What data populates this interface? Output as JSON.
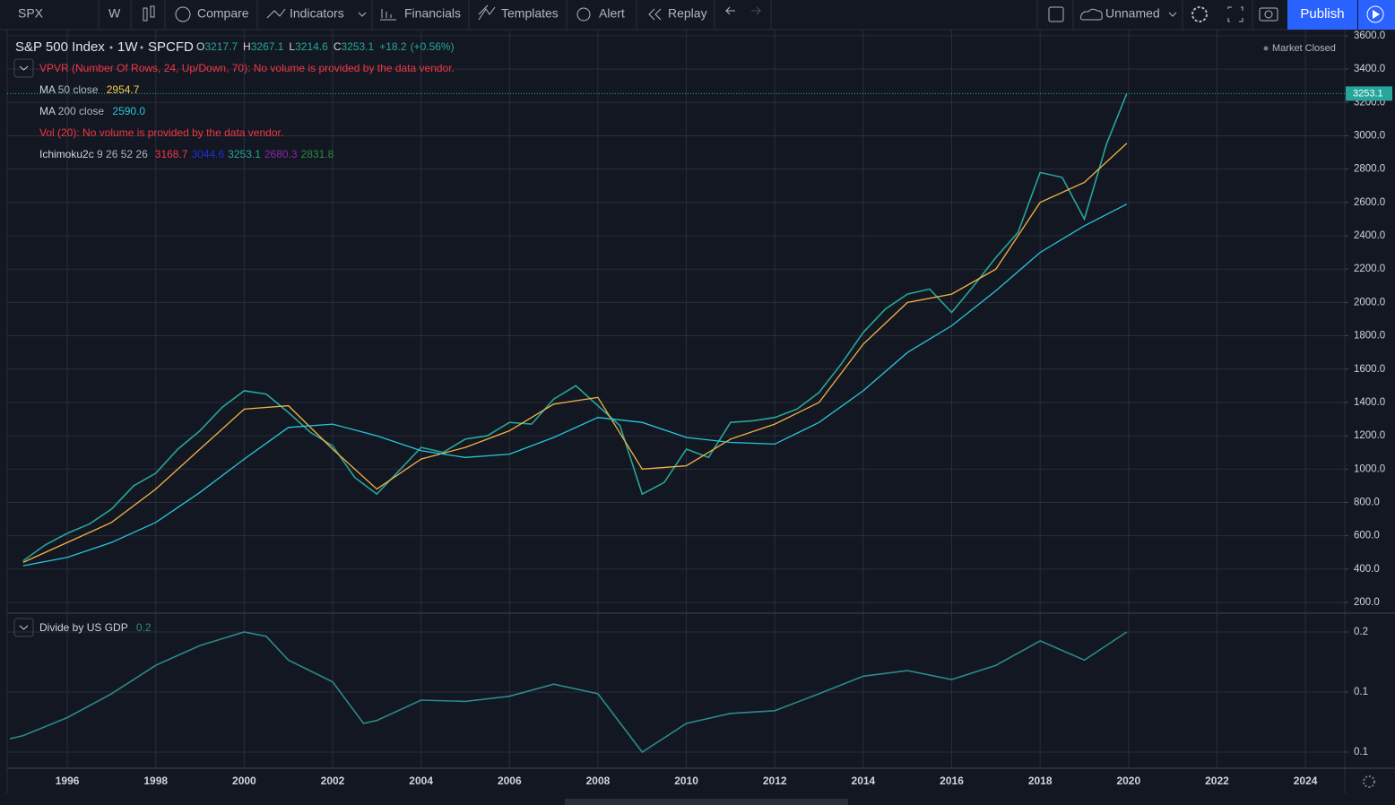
{
  "toolbar": {
    "symbol": "SPX",
    "interval": "W",
    "compare": "Compare",
    "indicators": "Indicators",
    "financials": "Financials",
    "templates": "Templates",
    "alert": "Alert",
    "replay": "Replay",
    "layout": "Unnamed",
    "publish": "Publish"
  },
  "header": {
    "symbol": "S&P 500 Index",
    "interval": "1W",
    "source": "SPCFD",
    "ohlc": [
      {
        "label": "O",
        "value": 3217.7
      },
      {
        "label": "H",
        "value": 3267.1
      },
      {
        "label": "L",
        "value": 3214.6
      },
      {
        "label": "C",
        "value": 3253.1
      }
    ],
    "change": "+18.2",
    "change_pct": "(+0.56%)",
    "status": "Market Closed"
  },
  "indicators": {
    "vpvr": "VPVR (Number Of Rows, 24, Up/Down, 70): No volume is provided by the data vendor.",
    "ma50": {
      "name": "MA",
      "params": "50 close",
      "value": 2954.7
    },
    "ma200": {
      "name": "MA",
      "params": "200 close",
      "value": "2590.0"
    },
    "vol": "Vol (20): No volume is provided by the data vendor.",
    "ichimoku": {
      "name": "Ichimoku2c",
      "params": "9 26 52 26",
      "values": [
        3168.7,
        3044.6,
        3253.1,
        2680.3,
        2831.8
      ],
      "colors": [
        "#f23645",
        "#1a2fd8",
        "#26a69a",
        "#8e24aa",
        "#2e8b3a"
      ]
    },
    "gdp": {
      "name": "Divide by US GDP",
      "value": 0.2
    }
  },
  "chart_data": [
    {
      "type": "line",
      "xlim": [
        1994.64,
        2024.89
      ],
      "xticks": [
        1996,
        1998,
        2000,
        2002,
        2004,
        2006,
        2008,
        2010,
        2012,
        2014,
        2016,
        2018,
        2020,
        2022,
        2024
      ],
      "ylim": [
        141,
        3621
      ],
      "yticks": [
        {
          "value": 200,
          "label": "200.0"
        },
        {
          "value": 400,
          "label": "400.0"
        },
        {
          "value": 600,
          "label": "600.0"
        },
        {
          "value": 800,
          "label": "800.0"
        },
        {
          "value": 1000,
          "label": "1000.0"
        },
        {
          "value": 1200,
          "label": "1200.0"
        },
        {
          "value": 1400,
          "label": "1400.0"
        },
        {
          "value": 1600,
          "label": "1600.0"
        },
        {
          "value": 1800,
          "label": "1800.0"
        },
        {
          "value": 2000,
          "label": "2000.0"
        },
        {
          "value": 2200,
          "label": "2200.0"
        },
        {
          "value": 2400,
          "label": "2400.0"
        },
        {
          "value": 2600,
          "label": "2600.0"
        },
        {
          "value": 2800,
          "label": "2800.0"
        },
        {
          "value": 3000,
          "label": "3000.0"
        },
        {
          "value": 3200,
          "label": "3200.0"
        },
        {
          "value": 3400,
          "label": "3400.0"
        },
        {
          "value": 3600,
          "label": "3600.0"
        }
      ],
      "grid": true,
      "series": [
        {
          "color": "#26a69a",
          "x": [
            1995,
            1995.5,
            1996,
            1996.5,
            1997,
            1997.5,
            1998,
            1998.5,
            1999,
            1999.5,
            2000,
            2000.5,
            2001,
            2001.5,
            2002,
            2002.5,
            2003,
            2003.5,
            2004,
            2004.5,
            2005,
            2005.5,
            2006,
            2006.5,
            2007,
            2007.5,
            2008,
            2008.5,
            2009,
            2009.5,
            2010,
            2010.5,
            2011,
            2011.5,
            2012,
            2012.5,
            2013,
            2013.5,
            2014,
            2014.5,
            2015,
            2015.5,
            2016,
            2016.5,
            2017,
            2017.5,
            2018,
            2018.5,
            2019,
            2019.5,
            2019.96
          ],
          "values": [
            450,
            545,
            615,
            670,
            760,
            900,
            975,
            1120,
            1230,
            1370,
            1470,
            1450,
            1340,
            1220,
            1140,
            950,
            850,
            990,
            1130,
            1100,
            1180,
            1200,
            1280,
            1270,
            1420,
            1500,
            1380,
            1260,
            850,
            920,
            1120,
            1070,
            1280,
            1290,
            1310,
            1360,
            1460,
            1630,
            1820,
            1960,
            2050,
            2080,
            1940,
            2100,
            2270,
            2420,
            2780,
            2750,
            2500,
            2950,
            3253.1
          ]
        },
        {
          "color": "#f5b342",
          "x": [
            1995,
            1996,
            1997,
            1998,
            1999,
            2000,
            2001,
            2002,
            2003,
            2004,
            2005,
            2006,
            2007,
            2008,
            2009,
            2010,
            2011,
            2012,
            2013,
            2014,
            2015,
            2016,
            2017,
            2018,
            2019,
            2019.96
          ],
          "values": [
            440,
            560,
            680,
            880,
            1120,
            1360,
            1380,
            1120,
            880,
            1060,
            1130,
            1230,
            1390,
            1430,
            1000,
            1020,
            1180,
            1270,
            1400,
            1750,
            2000,
            2050,
            2200,
            2600,
            2720,
            2954.7
          ]
        },
        {
          "color": "#26c6da",
          "x": [
            1995,
            1996,
            1997,
            1998,
            1999,
            2000,
            2001,
            2002,
            2003,
            2004,
            2005,
            2006,
            2007,
            2008,
            2009,
            2010,
            2011,
            2012,
            2013,
            2014,
            2015,
            2016,
            2017,
            2018,
            2019,
            2019.96
          ],
          "values": [
            420,
            470,
            560,
            680,
            860,
            1060,
            1250,
            1270,
            1200,
            1110,
            1070,
            1090,
            1190,
            1310,
            1280,
            1190,
            1160,
            1150,
            1280,
            1470,
            1700,
            1860,
            2070,
            2300,
            2460,
            2590.0
          ]
        }
      ],
      "last_price": {
        "value": 3253.1,
        "color": "#26a69a"
      }
    },
    {
      "type": "line",
      "log": true,
      "ylim": [
        0.0911,
        0.2218
      ],
      "yticks": [
        0.2,
        {
          "value": 0.1414,
          "label": "0.1"
        },
        0.1
      ],
      "grid": true,
      "series": [
        {
          "color": "#2b8a8a",
          "x": [
            1994.7,
            1995,
            1996,
            1997,
            1998,
            1999,
            2000,
            2000.5,
            2001,
            2002,
            2002.7,
            2003,
            2004,
            2005,
            2006,
            2007,
            2008,
            2009,
            2010,
            2011,
            2012,
            2013,
            2014,
            2015,
            2016,
            2017,
            2018,
            2019,
            2019.96
          ],
          "values": [
            0.108,
            0.11,
            0.122,
            0.14,
            0.165,
            0.185,
            0.2,
            0.195,
            0.17,
            0.15,
            0.118,
            0.12,
            0.135,
            0.134,
            0.138,
            0.148,
            0.14,
            0.1,
            0.118,
            0.125,
            0.127,
            0.14,
            0.155,
            0.16,
            0.152,
            0.165,
            0.19,
            0.17,
            0.2
          ]
        }
      ]
    }
  ]
}
